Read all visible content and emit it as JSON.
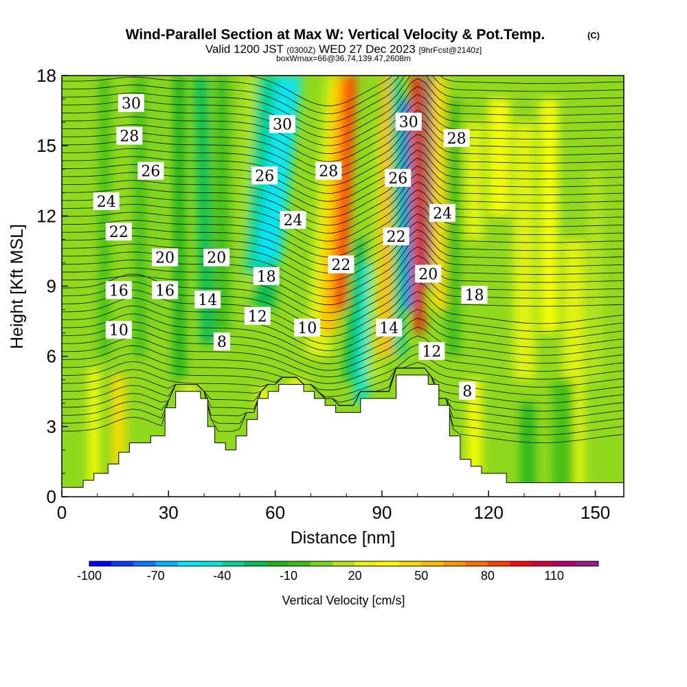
{
  "title": {
    "main": "Wind-Parallel Section at Max W: Vertical Velocity & Pot.Temp.",
    "copyright": "(C)",
    "valid_prefix": "Valid 1200 JST",
    "valid_utc": "(0300Z)",
    "valid_date": "WED 27 Dec 2023",
    "forecast": "[9hrFcst@2140z]",
    "box": "boxWmax=66@36.74,139.47,2608m"
  },
  "chart_data": {
    "type": "heatmap",
    "xlabel": "Distance [nm]",
    "ylabel": "Height [Kft MSL]",
    "xlim": [
      0,
      158
    ],
    "ylim": [
      0,
      18
    ],
    "xticks": [
      0,
      30,
      60,
      90,
      120,
      150
    ],
    "yticks": [
      0,
      3,
      6,
      9,
      12,
      15,
      18
    ],
    "grid": false,
    "colorbar": {
      "label": "Vertical Velocity [cm/s]",
      "range": [
        -100,
        130
      ],
      "step": 10,
      "tick_values": [
        -100,
        -70,
        -40,
        -10,
        20,
        50,
        80,
        110
      ],
      "tick_labels": [
        "-100",
        "-70",
        "-40",
        "-10",
        "20",
        "50",
        "80",
        "110"
      ],
      "colors": [
        "#0000ff",
        "#0a3cff",
        "#0a78ff",
        "#00b4ff",
        "#00e6ff",
        "#00e6d2",
        "#00d296",
        "#00be5a",
        "#1eb41e",
        "#3cbe14",
        "#78d21e",
        "#b4e61e",
        "#e6f50a",
        "#ffff00",
        "#ffdc00",
        "#ffbe00",
        "#ff9600",
        "#ff6e00",
        "#ff3c00",
        "#f00a0a",
        "#d2003c",
        "#b40064",
        "#961e8c"
      ]
    },
    "theta_labels": [
      {
        "value": "30",
        "x": 19.5,
        "y": 16.8
      },
      {
        "value": "28",
        "x": 19,
        "y": 15.4
      },
      {
        "value": "26",
        "x": 25,
        "y": 13.9
      },
      {
        "value": "24",
        "x": 12.5,
        "y": 12.6
      },
      {
        "value": "22",
        "x": 16,
        "y": 11.3
      },
      {
        "value": "20",
        "x": 29,
        "y": 10.2
      },
      {
        "value": "16",
        "x": 16,
        "y": 8.8
      },
      {
        "value": "16",
        "x": 29,
        "y": 8.8
      },
      {
        "value": "10",
        "x": 16,
        "y": 7.1
      },
      {
        "value": "20",
        "x": 43.5,
        "y": 10.2
      },
      {
        "value": "14",
        "x": 41,
        "y": 8.4
      },
      {
        "value": "8",
        "x": 45,
        "y": 6.6
      },
      {
        "value": "18",
        "x": 57.5,
        "y": 9.4
      },
      {
        "value": "12",
        "x": 55,
        "y": 7.7
      },
      {
        "value": "10",
        "x": 69,
        "y": 7.2
      },
      {
        "value": "30",
        "x": 62,
        "y": 15.9
      },
      {
        "value": "26",
        "x": 57,
        "y": 13.7
      },
      {
        "value": "24",
        "x": 65,
        "y": 11.8
      },
      {
        "value": "28",
        "x": 75,
        "y": 13.9
      },
      {
        "value": "22",
        "x": 78.5,
        "y": 9.9
      },
      {
        "value": "30",
        "x": 97.5,
        "y": 16
      },
      {
        "value": "26",
        "x": 94.5,
        "y": 13.6
      },
      {
        "value": "22",
        "x": 94,
        "y": 11.1
      },
      {
        "value": "14",
        "x": 92,
        "y": 7.2
      },
      {
        "value": "28",
        "x": 111,
        "y": 15.3
      },
      {
        "value": "24",
        "x": 107,
        "y": 12.1
      },
      {
        "value": "20",
        "x": 103,
        "y": 9.5
      },
      {
        "value": "18",
        "x": 116,
        "y": 8.6
      },
      {
        "value": "12",
        "x": 104,
        "y": 6.2
      },
      {
        "value": "8",
        "x": 114,
        "y": 4.5
      }
    ]
  }
}
